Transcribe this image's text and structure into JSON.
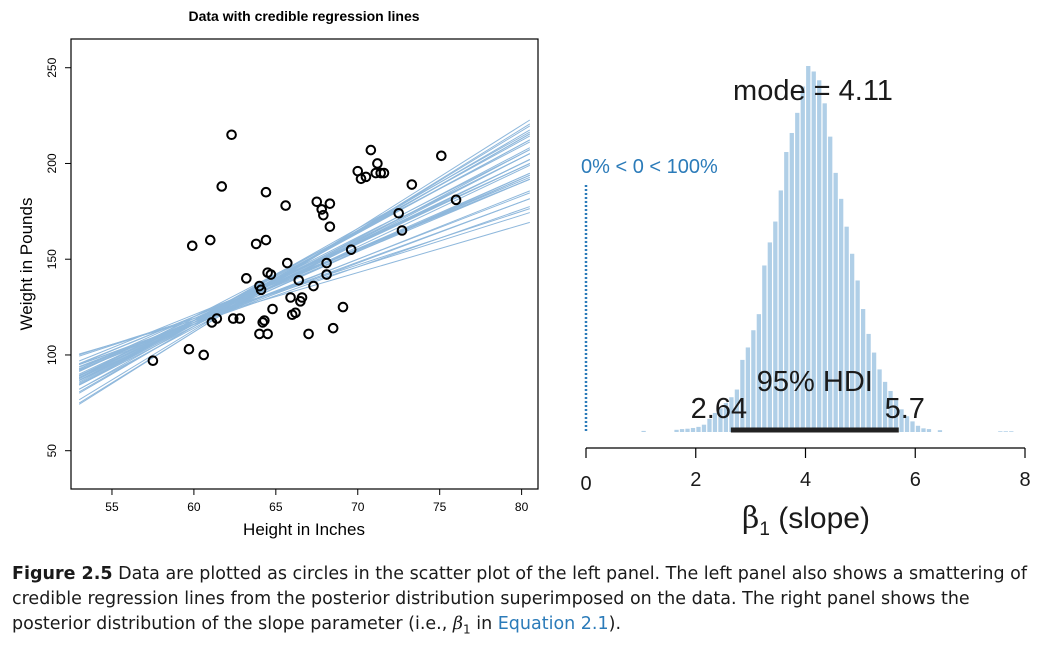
{
  "chart_data": [
    {
      "type": "scatter",
      "title": "Data with credible regression lines",
      "xlabel": "Height in Inches",
      "ylabel": "Weight in Pounds",
      "xlim": [
        52.5,
        81
      ],
      "ylim": [
        30,
        265
      ],
      "xticks": [
        55,
        60,
        65,
        70,
        75,
        80
      ],
      "yticks": [
        50,
        100,
        150,
        200,
        250
      ],
      "line_color": "#8fb8dc",
      "point_color": "#000000",
      "x_range_lines": [
        53,
        80.5
      ],
      "points": [
        [
          57.5,
          97
        ],
        [
          59.7,
          103
        ],
        [
          60.6,
          100
        ],
        [
          59.9,
          157
        ],
        [
          61.1,
          117
        ],
        [
          61.4,
          119
        ],
        [
          61,
          160
        ],
        [
          61.7,
          188
        ],
        [
          62.3,
          215
        ],
        [
          62.4,
          119
        ],
        [
          62.8,
          119
        ],
        [
          63.2,
          140
        ],
        [
          63.8,
          158
        ],
        [
          64,
          136
        ],
        [
          64.1,
          134
        ],
        [
          64,
          111
        ],
        [
          64.2,
          117
        ],
        [
          64.3,
          118
        ],
        [
          64.5,
          111
        ],
        [
          64.4,
          160
        ],
        [
          64.4,
          185
        ],
        [
          64.5,
          143
        ],
        [
          64.7,
          142
        ],
        [
          64.8,
          124
        ],
        [
          65.7,
          148
        ],
        [
          65.6,
          178
        ],
        [
          65.9,
          130
        ],
        [
          66,
          121
        ],
        [
          66.2,
          122
        ],
        [
          66.4,
          139
        ],
        [
          66.5,
          128
        ],
        [
          66.6,
          130
        ],
        [
          67,
          111
        ],
        [
          67.3,
          136
        ],
        [
          67.5,
          180
        ],
        [
          67.8,
          176
        ],
        [
          67.9,
          173
        ],
        [
          68.1,
          148
        ],
        [
          68.1,
          142
        ],
        [
          68.3,
          179
        ],
        [
          68.3,
          167
        ],
        [
          68.5,
          114
        ],
        [
          69.1,
          125
        ],
        [
          69.6,
          155
        ],
        [
          70,
          196
        ],
        [
          70.2,
          192
        ],
        [
          70.5,
          193
        ],
        [
          70.8,
          207
        ],
        [
          71.1,
          195
        ],
        [
          71.2,
          200
        ],
        [
          71.4,
          195
        ],
        [
          71.6,
          195
        ],
        [
          72.5,
          174
        ],
        [
          72.7,
          165
        ],
        [
          73.3,
          189
        ],
        [
          75.1,
          204
        ],
        [
          76,
          181
        ]
      ],
      "lines": [
        [
          2.5,
          -32
        ],
        [
          3.2,
          -76
        ],
        [
          3.9,
          -114
        ],
        [
          4.4,
          -149
        ],
        [
          4.9,
          -179
        ],
        [
          2.8,
          -49
        ],
        [
          3.5,
          -90
        ],
        [
          4.1,
          -128
        ],
        [
          4.6,
          -158
        ],
        [
          5.2,
          -199
        ],
        [
          3,
          -64
        ],
        [
          3.7,
          -104
        ],
        [
          4.2,
          -136
        ],
        [
          4.8,
          -170
        ],
        [
          5.4,
          -212
        ],
        [
          3.3,
          -81
        ],
        [
          3.8,
          -112
        ],
        [
          4.3,
          -141
        ],
        [
          4.0,
          -122
        ],
        [
          4.5,
          -154
        ],
        [
          5.0,
          -185
        ],
        [
          3.6,
          -98
        ],
        [
          4.7,
          -164
        ],
        [
          3.4,
          -88
        ],
        [
          4.25,
          -137
        ],
        [
          3.95,
          -118
        ],
        [
          4.55,
          -159
        ],
        [
          3.15,
          -72
        ],
        [
          4.85,
          -175
        ],
        [
          2.7,
          -43
        ],
        [
          5.3,
          -206
        ],
        [
          4.15,
          -132
        ],
        [
          3.75,
          -107
        ],
        [
          4.45,
          -147
        ],
        [
          3.55,
          -93
        ],
        [
          4.65,
          -162
        ],
        [
          3.85,
          -115
        ],
        [
          4.05,
          -127
        ],
        [
          4.35,
          -143
        ],
        [
          3.45,
          -86
        ]
      ]
    },
    {
      "type": "bar",
      "subtype": "histogram",
      "xlabel_main": "β",
      "xlabel_sub": "1",
      "xlabel_suffix": " (slope)",
      "xlim": [
        -0.15,
        8.15
      ],
      "xticks": [
        0,
        2,
        4,
        6,
        8
      ],
      "bar_color": "#b0cfe7",
      "bin_width": 0.1,
      "bins": [
        [
          1.0,
          0.003
        ],
        [
          1.6,
          0.006
        ],
        [
          1.7,
          0.008
        ],
        [
          1.8,
          0.009
        ],
        [
          1.9,
          0.011
        ],
        [
          2.0,
          0.014
        ],
        [
          2.1,
          0.02
        ],
        [
          2.2,
          0.036
        ],
        [
          2.3,
          0.052
        ],
        [
          2.4,
          0.065
        ],
        [
          2.5,
          0.079
        ],
        [
          2.6,
          0.095
        ],
        [
          2.7,
          0.116
        ],
        [
          2.8,
          0.197
        ],
        [
          2.9,
          0.231
        ],
        [
          3.0,
          0.278
        ],
        [
          3.1,
          0.322
        ],
        [
          3.2,
          0.455
        ],
        [
          3.3,
          0.518
        ],
        [
          3.4,
          0.575
        ],
        [
          3.5,
          0.66
        ],
        [
          3.6,
          0.765
        ],
        [
          3.7,
          0.817
        ],
        [
          3.8,
          0.872
        ],
        [
          3.9,
          0.944
        ],
        [
          4.0,
          1.0
        ],
        [
          4.1,
          0.985
        ],
        [
          4.2,
          0.961
        ],
        [
          4.3,
          0.898
        ],
        [
          4.4,
          0.807
        ],
        [
          4.5,
          0.708
        ],
        [
          4.6,
          0.637
        ],
        [
          4.7,
          0.561
        ],
        [
          4.8,
          0.487
        ],
        [
          4.9,
          0.414
        ],
        [
          5.0,
          0.336
        ],
        [
          5.1,
          0.268
        ],
        [
          5.2,
          0.217
        ],
        [
          5.3,
          0.171
        ],
        [
          5.4,
          0.137
        ],
        [
          5.5,
          0.112
        ],
        [
          5.6,
          0.088
        ],
        [
          5.7,
          0.062
        ],
        [
          5.8,
          0.043
        ],
        [
          5.9,
          0.029
        ],
        [
          6.0,
          0.017
        ],
        [
          6.1,
          0.01
        ],
        [
          6.2,
          0.008
        ],
        [
          6.4,
          0.005
        ],
        [
          7.5,
          0.002
        ],
        [
          7.6,
          0.002
        ],
        [
          7.7,
          0.002
        ]
      ],
      "annotations": {
        "mode": "mode = 4.11",
        "compare": "0% < 0 < 100%",
        "hdi_label": "95% HDI",
        "hdi_low_label": "2.64",
        "hdi_high_label": "5.7"
      },
      "compare_value": 0,
      "compare_color": "#2b7bb9",
      "hdi": [
        2.64,
        5.7
      ]
    }
  ],
  "caption": {
    "label": "Figure 2.5",
    "text1": " Data are plotted as circles in the scatter plot of the left panel. The left panel also shows a smattering of credible regression lines from the posterior distribution superimposed on the data. The right panel shows the posterior distribution of the slope parameter (i.e., ",
    "symbol": "β",
    "symbol_sub": "1",
    "text2": " in ",
    "ref": "Equation 2.1",
    "text3": ")."
  }
}
